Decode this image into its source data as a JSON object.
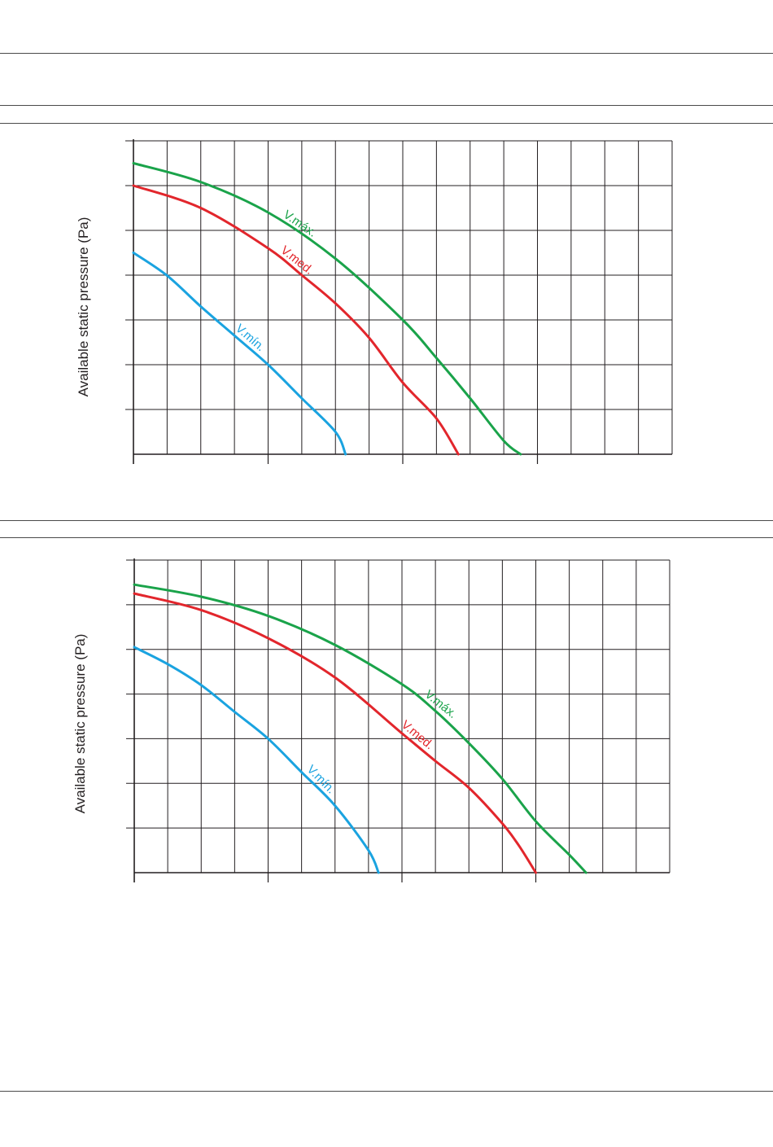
{
  "page": {
    "rules": [
      "top-rule",
      "header-rule-1",
      "header-rule-2",
      "mid-rule-1",
      "mid-rule-2",
      "footer-rule"
    ]
  },
  "colors": {
    "v_max": "#1aa34a",
    "v_med": "#e2262c",
    "v_min": "#1aa3e0",
    "grid": "#231f20"
  },
  "chart_data": [
    {
      "type": "line",
      "ylabel": "Available static pressure (Pa)",
      "xlabel": "",
      "x_grid_divisions": 16,
      "y_grid_divisions": 7,
      "xlim": [
        0,
        16
      ],
      "ylim": [
        0,
        7
      ],
      "grid": true,
      "series": [
        {
          "name": "V.máx.",
          "color": "#1aa34a",
          "x": [
            0,
            2,
            4,
            6,
            8,
            9,
            10,
            11,
            11.5
          ],
          "y": [
            6.5,
            6.08,
            5.4,
            4.37,
            3.0,
            2.15,
            1.25,
            0.3,
            0
          ]
        },
        {
          "name": "V.med.",
          "color": "#e2262c",
          "x": [
            0,
            2,
            4,
            5,
            6,
            7,
            8,
            9,
            9.65
          ],
          "y": [
            6.0,
            5.5,
            4.6,
            4.0,
            3.37,
            2.6,
            1.6,
            0.8,
            0
          ]
        },
        {
          "name": "V.mín.",
          "color": "#1aa3e0",
          "x": [
            0,
            1,
            2,
            3,
            4,
            5,
            6,
            6.3
          ],
          "y": [
            4.5,
            3.99,
            3.3,
            2.65,
            2.0,
            1.25,
            0.5,
            0
          ]
        }
      ]
    },
    {
      "type": "line",
      "ylabel": "Available static pressure (Pa)",
      "xlabel": "",
      "x_grid_divisions": 16,
      "y_grid_divisions": 7,
      "xlim": [
        0,
        16
      ],
      "ylim": [
        0,
        7
      ],
      "grid": true,
      "series": [
        {
          "name": "V.máx.",
          "color": "#1aa34a",
          "x": [
            0,
            2,
            4,
            6,
            8,
            9,
            10,
            11,
            12,
            13,
            13.5
          ],
          "y": [
            6.45,
            6.18,
            5.75,
            5.1,
            4.22,
            3.62,
            2.9,
            2.1,
            1.15,
            0.4,
            0
          ]
        },
        {
          "name": "V.med.",
          "color": "#e2262c",
          "x": [
            0,
            2,
            4,
            6,
            8,
            9,
            10,
            11,
            11.5,
            12
          ],
          "y": [
            6.25,
            5.88,
            5.25,
            4.37,
            3.12,
            2.5,
            1.9,
            1.1,
            0.6,
            0
          ]
        },
        {
          "name": "V.mín.",
          "color": "#1aa3e0",
          "x": [
            0,
            1,
            2,
            3,
            4,
            5,
            6,
            7,
            7.3
          ],
          "y": [
            5.05,
            4.67,
            4.2,
            3.6,
            3.0,
            2.25,
            1.5,
            0.5,
            0
          ]
        }
      ]
    }
  ]
}
